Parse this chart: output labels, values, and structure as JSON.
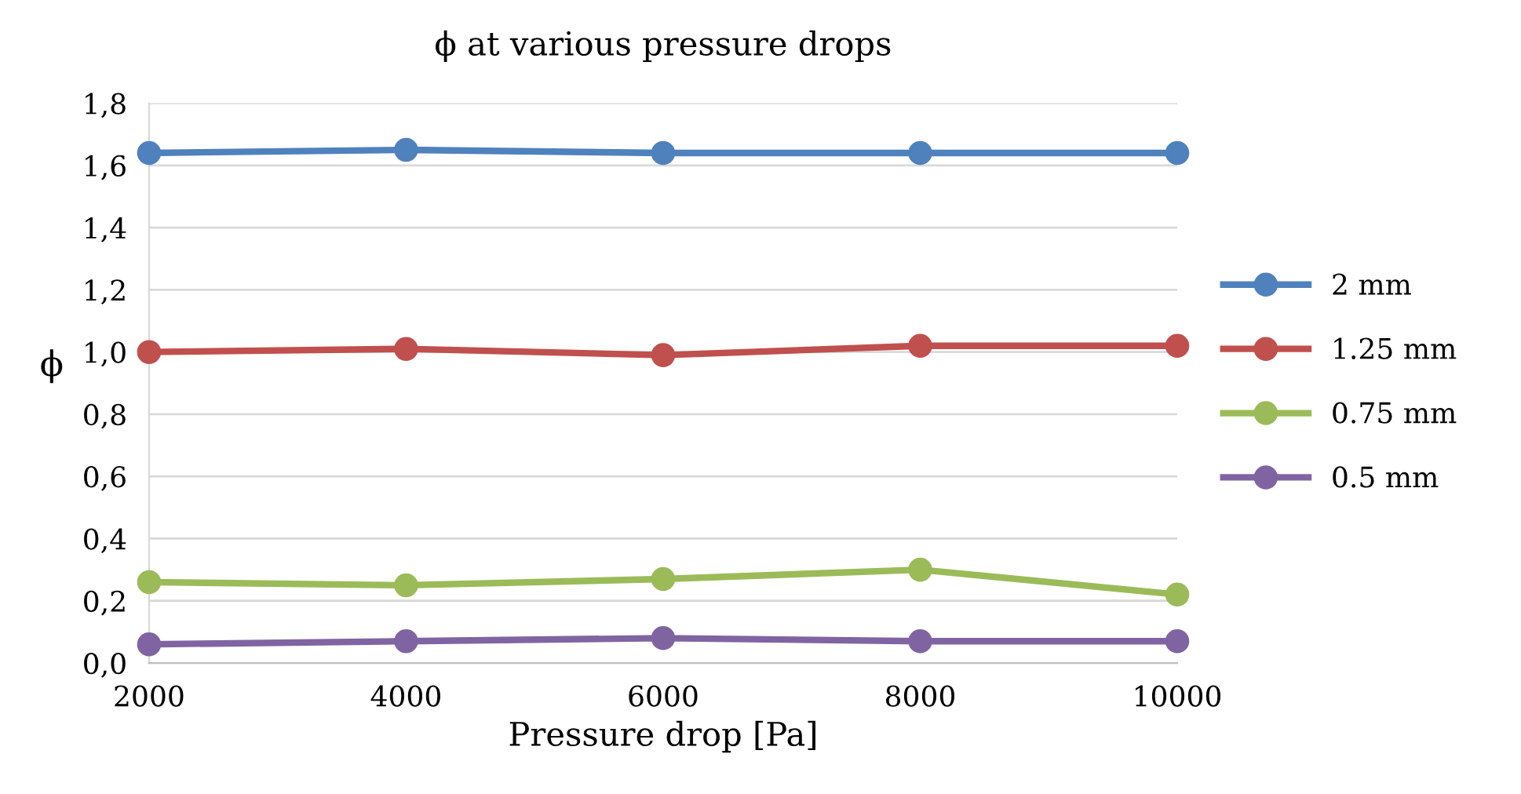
{
  "chart_data": {
    "type": "line",
    "title": "ϕ at various pressure drops",
    "xlabel": "Pressure drop [Pa]",
    "ylabel": "ϕ",
    "x": [
      2000,
      4000,
      6000,
      8000,
      10000
    ],
    "series": [
      {
        "name": "2 mm",
        "color": "#4f81bd",
        "values": [
          1.64,
          1.65,
          1.64,
          1.64,
          1.64
        ]
      },
      {
        "name": "1.25 mm",
        "color": "#c0504d",
        "values": [
          1.0,
          1.01,
          0.99,
          1.02,
          1.02
        ]
      },
      {
        "name": "0.75 mm",
        "color": "#9bbb59",
        "values": [
          0.26,
          0.25,
          0.27,
          0.3,
          0.22
        ]
      },
      {
        "name": "0.5 mm",
        "color": "#8064a2",
        "values": [
          0.06,
          0.07,
          0.08,
          0.07,
          0.07
        ]
      }
    ],
    "xlim": [
      2000,
      10000
    ],
    "xticks": [
      2000,
      4000,
      6000,
      8000,
      10000
    ],
    "ylim": [
      0,
      1.8
    ],
    "yticks": [
      {
        "value": 0,
        "label": "0,0"
      },
      {
        "value": 0.2,
        "label": "0,2"
      },
      {
        "value": 0.4,
        "label": "0,4"
      },
      {
        "value": 0.6,
        "label": "0,6"
      },
      {
        "value": 0.8,
        "label": "0,8"
      },
      {
        "value": 1.0,
        "label": "1,0"
      },
      {
        "value": 1.2,
        "label": "1,2"
      },
      {
        "value": 1.4,
        "label": "1,4"
      },
      {
        "value": 1.6,
        "label": "1,6"
      },
      {
        "value": 1.8,
        "label": "1,8"
      }
    ],
    "grid": "y",
    "legend": "right",
    "marker": "circle",
    "line_style": "solid"
  }
}
